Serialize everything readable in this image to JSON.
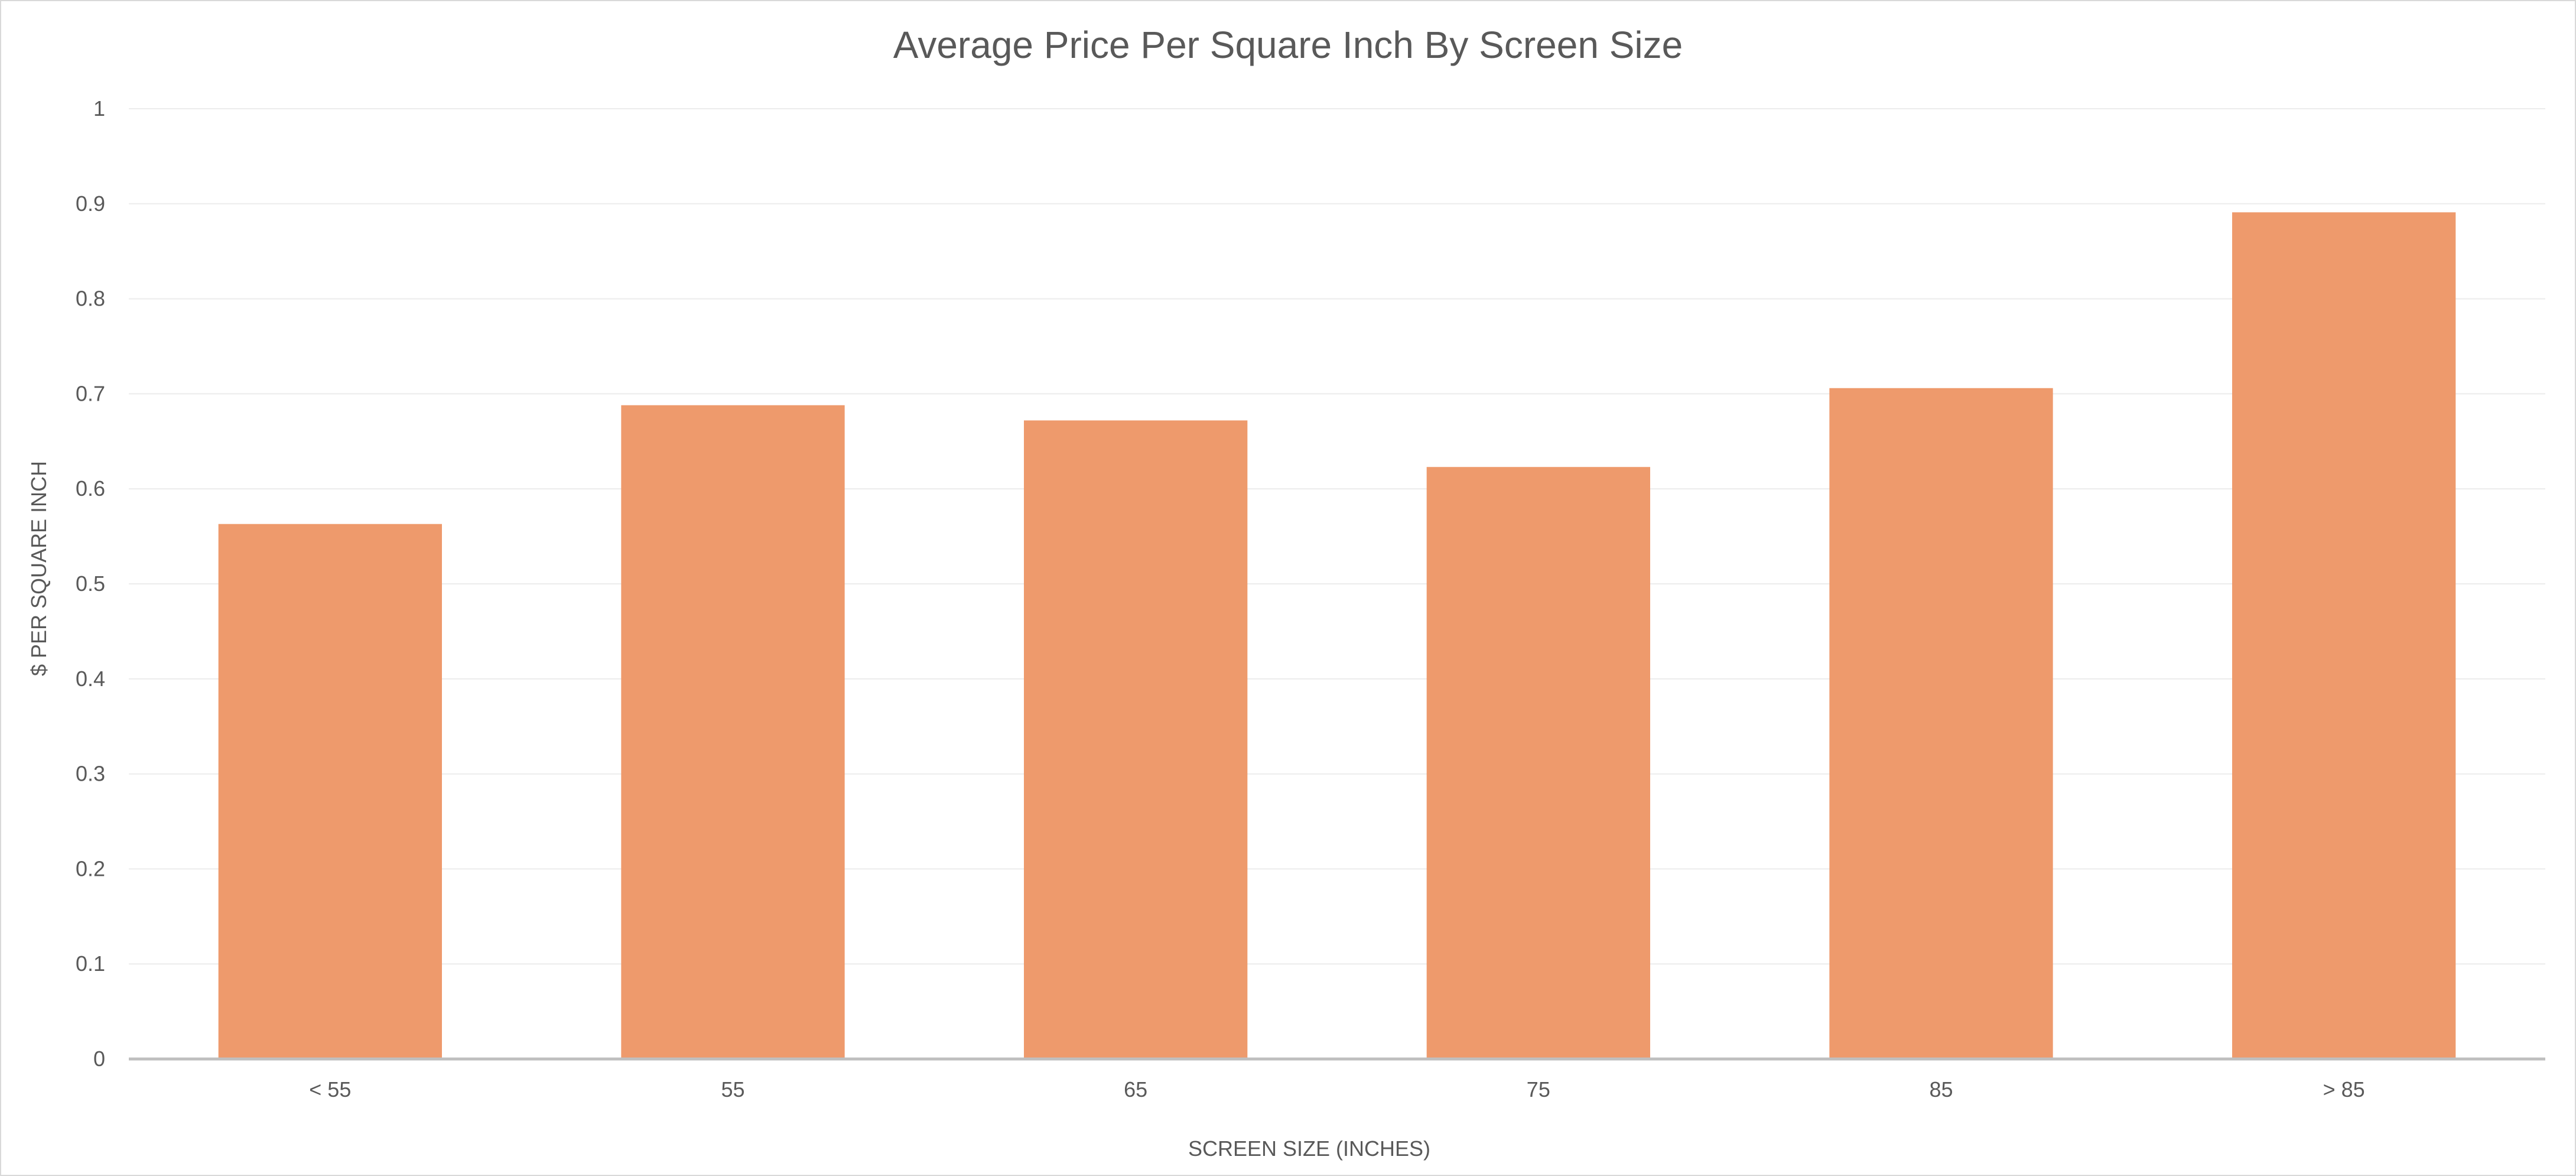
{
  "chart_data": {
    "type": "bar",
    "title": "Average Price Per Square Inch By Screen Size",
    "xlabel": "SCREEN SIZE (INCHES)",
    "ylabel": "$ PER SQUARE INCH",
    "categories": [
      "< 55",
      "55",
      "65",
      "75",
      "85",
      "> 85"
    ],
    "values": [
      0.563,
      0.688,
      0.672,
      0.623,
      0.706,
      0.891
    ],
    "ylim": [
      0,
      1
    ],
    "yticks": [
      "0",
      "0.1",
      "0.2",
      "0.3",
      "0.4",
      "0.5",
      "0.6",
      "0.7",
      "0.8",
      "0.9",
      "1"
    ],
    "grid": true,
    "legend": "none",
    "bar_color": "#EE9A6C",
    "grid_color": "#ececec",
    "axis_color": "#bfbfbf",
    "text_color": "#595959"
  }
}
